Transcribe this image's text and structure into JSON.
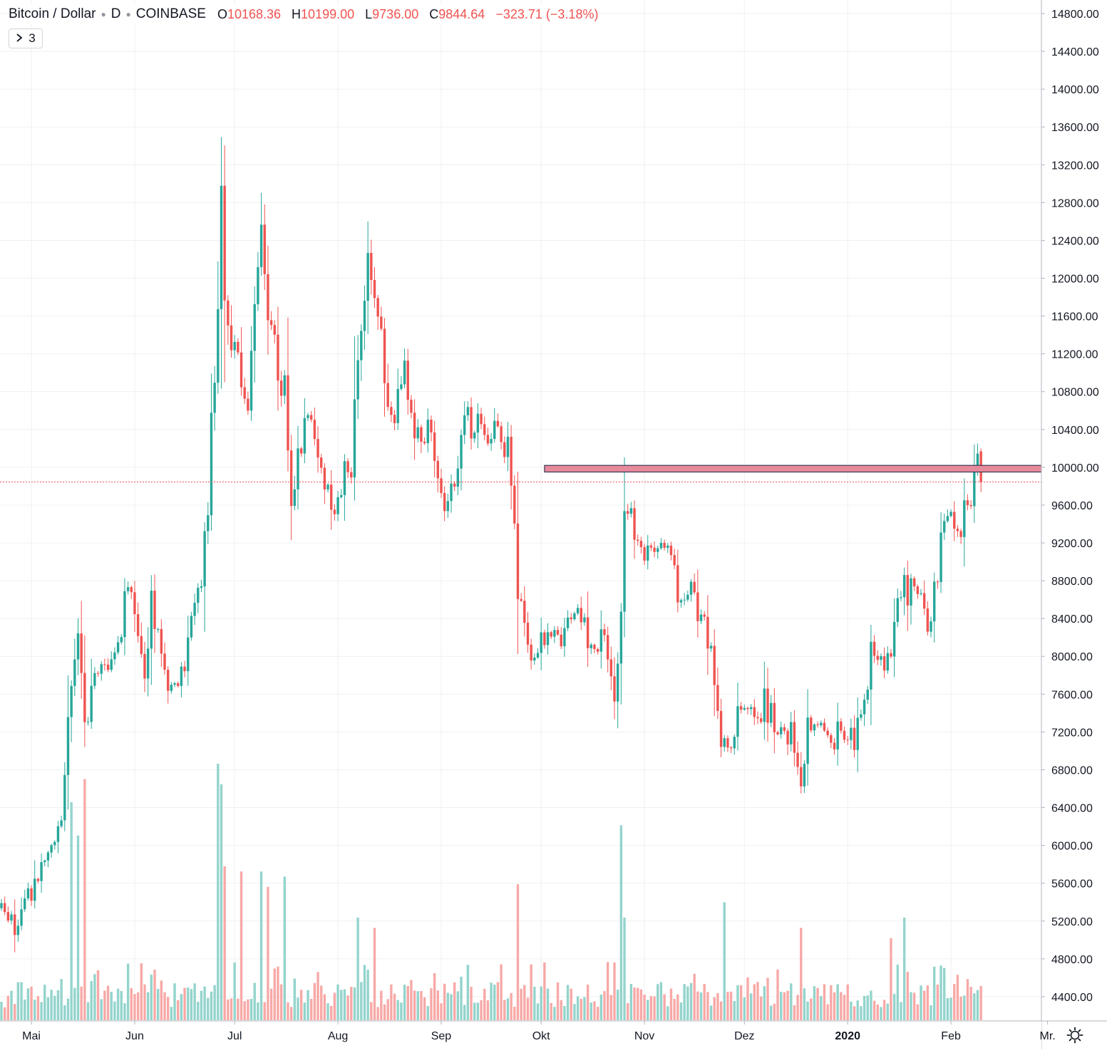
{
  "header": {
    "symbol": "Bitcoin / Dollar",
    "interval": "D",
    "exchange": "COINBASE",
    "open_label": "O",
    "open_value": "10168.36",
    "high_label": "H",
    "high_value": "10199.00",
    "low_label": "L",
    "low_value": "9736.00",
    "close_label": "C",
    "close_value": "9844.64",
    "change": "−323.71 (−3.18%)"
  },
  "studies_button": {
    "count": "3"
  },
  "icons": {
    "collapse": "chevron-right-icon",
    "settings": "gear-icon"
  },
  "colors": {
    "up": "#26a69a",
    "down": "#ef5350",
    "up_volume": "#93d4cc",
    "down_volume": "#f7a9a7",
    "zone_fill": "#e68a9c",
    "zone_stroke": "#3a3a55"
  },
  "chart_data": {
    "type": "candlestick",
    "symbol": "Bitcoin / Dollar",
    "interval": "D",
    "exchange": "COINBASE",
    "y_axis": {
      "min": 4100,
      "max": 14950,
      "ticks": [
        14800,
        14400,
        14000,
        13600,
        13200,
        12800,
        12400,
        12000,
        11600,
        11200,
        10800,
        10400,
        10000,
        9600,
        9200,
        8800,
        8400,
        8000,
        7600,
        7200,
        6800,
        6400,
        6000,
        5600,
        5200,
        4800,
        4400
      ]
    },
    "x_axis": {
      "labels": [
        "Mai",
        "Jun",
        "Jul",
        "Aug",
        "Sep",
        "Okt",
        "Nov",
        "Dez",
        "2020",
        "Feb",
        "Mr."
      ],
      "label_dates": [
        "2019-05-01",
        "2019-06-01",
        "2019-07-01",
        "2019-08-01",
        "2019-09-01",
        "2019-10-01",
        "2019-11-01",
        "2019-12-01",
        "2020-01-01",
        "2020-02-01",
        "2020-03-01"
      ]
    },
    "grid": true,
    "last_price": 9844.64,
    "resistance_zone": {
      "low": 9950,
      "high": 10020,
      "from": "2019-10-02",
      "to": "2020-03-01"
    },
    "start_date": "2019-04-22",
    "anchors": [
      [
        "2019-04-22",
        5350
      ],
      [
        "2019-04-26",
        5100
      ],
      [
        "2019-05-03",
        5700
      ],
      [
        "2019-05-10",
        6300
      ],
      [
        "2019-05-13",
        7800
      ],
      [
        "2019-05-15",
        8100
      ],
      [
        "2019-05-17",
        7300
      ],
      [
        "2019-05-21",
        7900
      ],
      [
        "2019-05-24",
        7700
      ],
      [
        "2019-05-30",
        8700
      ],
      [
        "2019-06-04",
        7800
      ],
      [
        "2019-06-06",
        8600
      ],
      [
        "2019-06-10",
        7700
      ],
      [
        "2019-06-16",
        7900
      ],
      [
        "2019-06-21",
        8800
      ],
      [
        "2019-06-23",
        9700
      ],
      [
        "2019-06-26",
        11800
      ],
      [
        "2019-06-27",
        12800
      ],
      [
        "2019-06-28",
        11800
      ],
      [
        "2019-07-03",
        10900
      ],
      [
        "2019-07-05",
        10500
      ],
      [
        "2019-07-09",
        12500
      ],
      [
        "2019-07-11",
        11600
      ],
      [
        "2019-07-16",
        10800
      ],
      [
        "2019-07-18",
        9600
      ],
      [
        "2019-07-22",
        10600
      ],
      [
        "2019-07-25",
        10300
      ],
      [
        "2019-07-27",
        9800
      ],
      [
        "2019-08-01",
        9600
      ],
      [
        "2019-08-05",
        10100
      ],
      [
        "2019-08-07",
        11300
      ],
      [
        "2019-08-10",
        12000
      ],
      [
        "2019-08-13",
        11600
      ],
      [
        "2019-08-16",
        10600
      ],
      [
        "2019-08-19",
        10700
      ],
      [
        "2019-08-21",
        10900
      ],
      [
        "2019-08-25",
        10300
      ],
      [
        "2019-08-29",
        10300
      ],
      [
        "2019-09-01",
        9700
      ],
      [
        "2019-09-03",
        9500
      ],
      [
        "2019-09-05",
        9800
      ],
      [
        "2019-09-07",
        10500
      ],
      [
        "2019-09-12",
        10400
      ],
      [
        "2019-09-16",
        10300
      ],
      [
        "2019-09-20",
        10200
      ],
      [
        "2019-09-22",
        10000
      ],
      [
        "2019-09-24",
        8600
      ],
      [
        "2019-09-27",
        8000
      ],
      [
        "2019-10-01",
        8200
      ],
      [
        "2019-10-05",
        8100
      ],
      [
        "2019-10-10",
        8500
      ],
      [
        "2019-10-15",
        8200
      ],
      [
        "2019-10-17",
        8200
      ],
      [
        "2019-10-20",
        8100
      ],
      [
        "2019-10-23",
        7400
      ],
      [
        "2019-10-25",
        8600
      ],
      [
        "2019-10-26",
        9400
      ],
      [
        "2019-10-28",
        9400
      ],
      [
        "2019-11-01",
        9200
      ],
      [
        "2019-11-04",
        9300
      ],
      [
        "2019-11-08",
        9200
      ],
      [
        "2019-11-10",
        8800
      ],
      [
        "2019-11-15",
        8600
      ],
      [
        "2019-11-20",
        8200
      ],
      [
        "2019-11-24",
        7200
      ],
      [
        "2019-11-27",
        7000
      ],
      [
        "2019-11-29",
        7500
      ],
      [
        "2019-12-03",
        7300
      ],
      [
        "2019-12-07",
        7500
      ],
      [
        "2019-12-10",
        7300
      ],
      [
        "2019-12-15",
        7150
      ],
      [
        "2019-12-18",
        6650
      ],
      [
        "2019-12-20",
        7200
      ],
      [
        "2019-12-24",
        7300
      ],
      [
        "2019-12-28",
        7150
      ],
      [
        "2019-12-31",
        7250
      ],
      [
        "2020-01-03",
        7100
      ],
      [
        "2020-01-05",
        7350
      ],
      [
        "2020-01-08",
        8000
      ],
      [
        "2020-01-10",
        7800
      ],
      [
        "2020-01-14",
        8100
      ],
      [
        "2020-01-16",
        8800
      ],
      [
        "2020-01-19",
        8700
      ],
      [
        "2020-01-22",
        8650
      ],
      [
        "2020-01-25",
        8400
      ],
      [
        "2020-01-27",
        8600
      ],
      [
        "2020-01-30",
        9400
      ],
      [
        "2020-02-03",
        9300
      ],
      [
        "2020-02-05",
        9500
      ],
      [
        "2020-02-07",
        9800
      ],
      [
        "2020-02-09",
        10100
      ],
      [
        "2020-02-10",
        9844
      ]
    ],
    "volume_spikes": {
      "2019-05-13": 0.85,
      "2019-05-15": 0.72,
      "2019-05-17": 0.94,
      "2019-06-26": 1.0,
      "2019-06-27": 0.92,
      "2019-06-28": 0.6,
      "2019-07-03": 0.58,
      "2019-07-09": 0.58,
      "2019-07-11": 0.52,
      "2019-07-16": 0.56,
      "2019-08-07": 0.4,
      "2019-08-12": 0.36,
      "2019-09-24": 0.53,
      "2019-10-25": 0.76,
      "2019-10-26": 0.4,
      "2019-11-25": 0.46,
      "2019-12-18": 0.36,
      "2020-01-14": 0.32,
      "2020-01-18": 0.4
    }
  }
}
